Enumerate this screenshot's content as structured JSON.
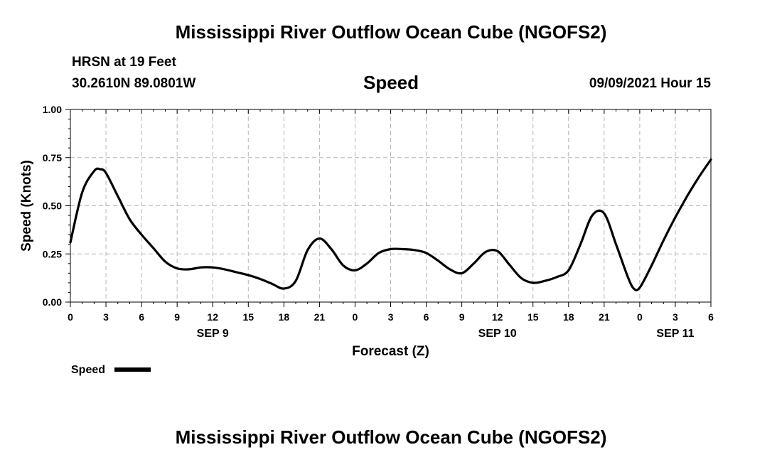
{
  "titles": {
    "main": "Mississippi River Outflow Ocean Cube (NGOFS2)",
    "bottom": "Mississippi River Outflow Ocean Cube (NGOFS2)",
    "station": "HRSN at 19 Feet",
    "coords": "30.2610N  89.0801W",
    "variable": "Speed",
    "datetime": "09/09/2021 Hour 15"
  },
  "chart_data": {
    "type": "line",
    "xlabel": "Forecast (Z)",
    "ylabel": "Speed (Knots)",
    "xlim": [
      0,
      54
    ],
    "ylim": [
      0,
      1.0
    ],
    "x_unit": "hours from 2021-09-09 00Z",
    "x_ticks": [
      0,
      3,
      6,
      9,
      12,
      15,
      18,
      21,
      24,
      27,
      30,
      33,
      36,
      39,
      42,
      45,
      48,
      51,
      54
    ],
    "x_tick_labels": [
      "0",
      "3",
      "6",
      "9",
      "12",
      "15",
      "18",
      "21",
      "0",
      "3",
      "6",
      "9",
      "12",
      "15",
      "18",
      "21",
      "0",
      "3",
      "6"
    ],
    "date_labels": [
      {
        "x": 12,
        "label": "SEP 9"
      },
      {
        "x": 36,
        "label": "SEP 10"
      },
      {
        "x": 51,
        "label": "SEP 11"
      }
    ],
    "y_ticks": [
      0,
      0.25,
      0.5,
      0.75,
      1.0
    ],
    "y_tick_labels": [
      "0.00",
      "0.25",
      "0.50",
      "0.75",
      "1.00"
    ],
    "grid": true,
    "legend": {
      "placement": "bottom-left",
      "entries": [
        "Speed"
      ]
    },
    "series": [
      {
        "name": "Speed",
        "color": "#000000",
        "x": [
          0,
          1,
          2,
          2.5,
          3,
          4,
          5,
          6,
          7,
          8,
          9,
          10,
          11,
          12,
          13,
          14,
          15,
          16,
          17,
          18,
          19,
          20,
          21,
          22,
          23,
          24,
          25,
          26,
          27,
          28,
          29,
          30,
          31,
          32,
          33,
          34,
          35,
          36,
          37,
          38,
          39,
          40,
          41,
          42,
          43,
          44,
          45,
          46,
          47,
          47.5,
          48,
          49,
          50,
          51,
          52,
          53,
          54
        ],
        "y": [
          0.31,
          0.57,
          0.68,
          0.69,
          0.67,
          0.55,
          0.43,
          0.35,
          0.28,
          0.21,
          0.175,
          0.17,
          0.18,
          0.18,
          0.17,
          0.155,
          0.14,
          0.12,
          0.095,
          0.07,
          0.11,
          0.27,
          0.33,
          0.275,
          0.19,
          0.165,
          0.2,
          0.255,
          0.275,
          0.275,
          0.27,
          0.255,
          0.215,
          0.17,
          0.15,
          0.2,
          0.26,
          0.265,
          0.195,
          0.125,
          0.1,
          0.11,
          0.13,
          0.165,
          0.3,
          0.45,
          0.46,
          0.3,
          0.13,
          0.07,
          0.075,
          0.19,
          0.32,
          0.44,
          0.55,
          0.65,
          0.74
        ]
      }
    ]
  }
}
